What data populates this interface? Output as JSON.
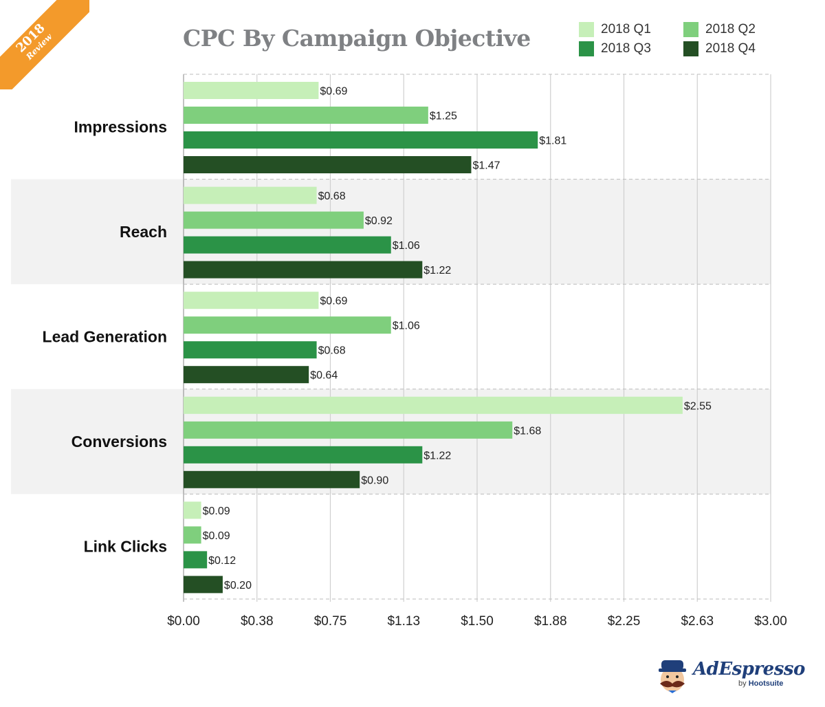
{
  "badge": {
    "year": "2018",
    "label": "Review"
  },
  "brand": {
    "name": "AdEspresso",
    "by": "by",
    "company": "Hootsuite"
  },
  "chart_data": {
    "type": "bar",
    "orientation": "horizontal",
    "title": "CPC By Campaign Objective",
    "xlabel": "",
    "ylabel": "",
    "xlim": [
      0,
      3.0
    ],
    "x_ticks": [
      "$0.00",
      "$0.38",
      "$0.75",
      "$1.13",
      "$1.50",
      "$1.88",
      "$2.25",
      "$2.63",
      "$3.00"
    ],
    "grid": true,
    "legend_position": "top-right",
    "categories": [
      "Impressions",
      "Reach",
      "Lead Generation",
      "Conversions",
      "Link Clicks"
    ],
    "series": [
      {
        "name": "2018 Q1",
        "color": "#c6efb8",
        "values": [
          0.69,
          0.68,
          0.69,
          2.55,
          0.09
        ],
        "labels": [
          "$0.69",
          "$0.68",
          "$0.69",
          "$2.55",
          "$0.09"
        ]
      },
      {
        "name": "2018 Q2",
        "color": "#7fcf7d",
        "values": [
          1.25,
          0.92,
          1.06,
          1.68,
          0.09
        ],
        "labels": [
          "$1.25",
          "$0.92",
          "$1.06",
          "$1.68",
          "$0.09"
        ]
      },
      {
        "name": "2018 Q3",
        "color": "#2b9347",
        "values": [
          1.81,
          1.06,
          0.68,
          1.22,
          0.12
        ],
        "labels": [
          "$1.81",
          "$1.06",
          "$0.68",
          "$1.22",
          "$0.12"
        ]
      },
      {
        "name": "2018 Q4",
        "color": "#244f24",
        "values": [
          1.47,
          1.22,
          0.64,
          0.9,
          0.2
        ],
        "labels": [
          "$1.47",
          "$1.22",
          "$0.64",
          "$0.90",
          "$0.20"
        ]
      }
    ]
  }
}
